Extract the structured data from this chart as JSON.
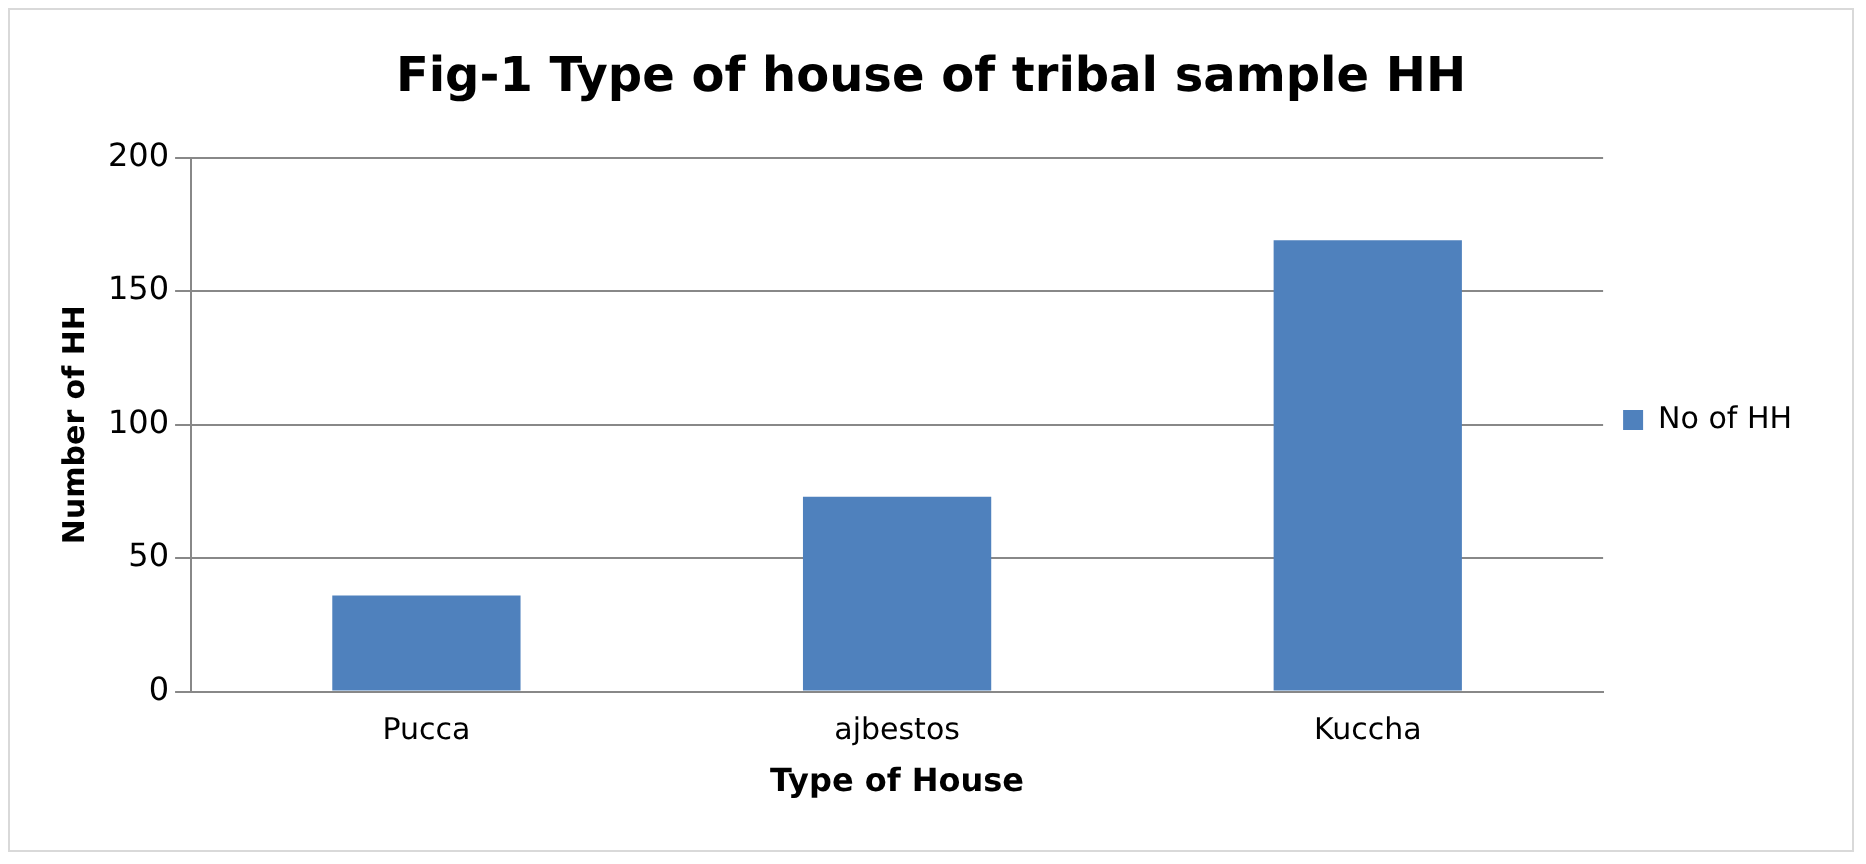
{
  "chart_data": {
    "type": "bar",
    "title": "Fig-1 Type of house of tribal sample HH",
    "xlabel": "Type of House",
    "ylabel": "Number of HH",
    "categories": [
      "Pucca",
      "ajbestos",
      "Kuccha"
    ],
    "series": [
      {
        "name": "No of HH",
        "color": "#4f81bd",
        "values": [
          36,
          73,
          169
        ]
      }
    ],
    "ylim": [
      0,
      200
    ],
    "yticks": [
      0,
      50,
      100,
      150,
      200
    ],
    "grid": "y",
    "legend": "right"
  }
}
